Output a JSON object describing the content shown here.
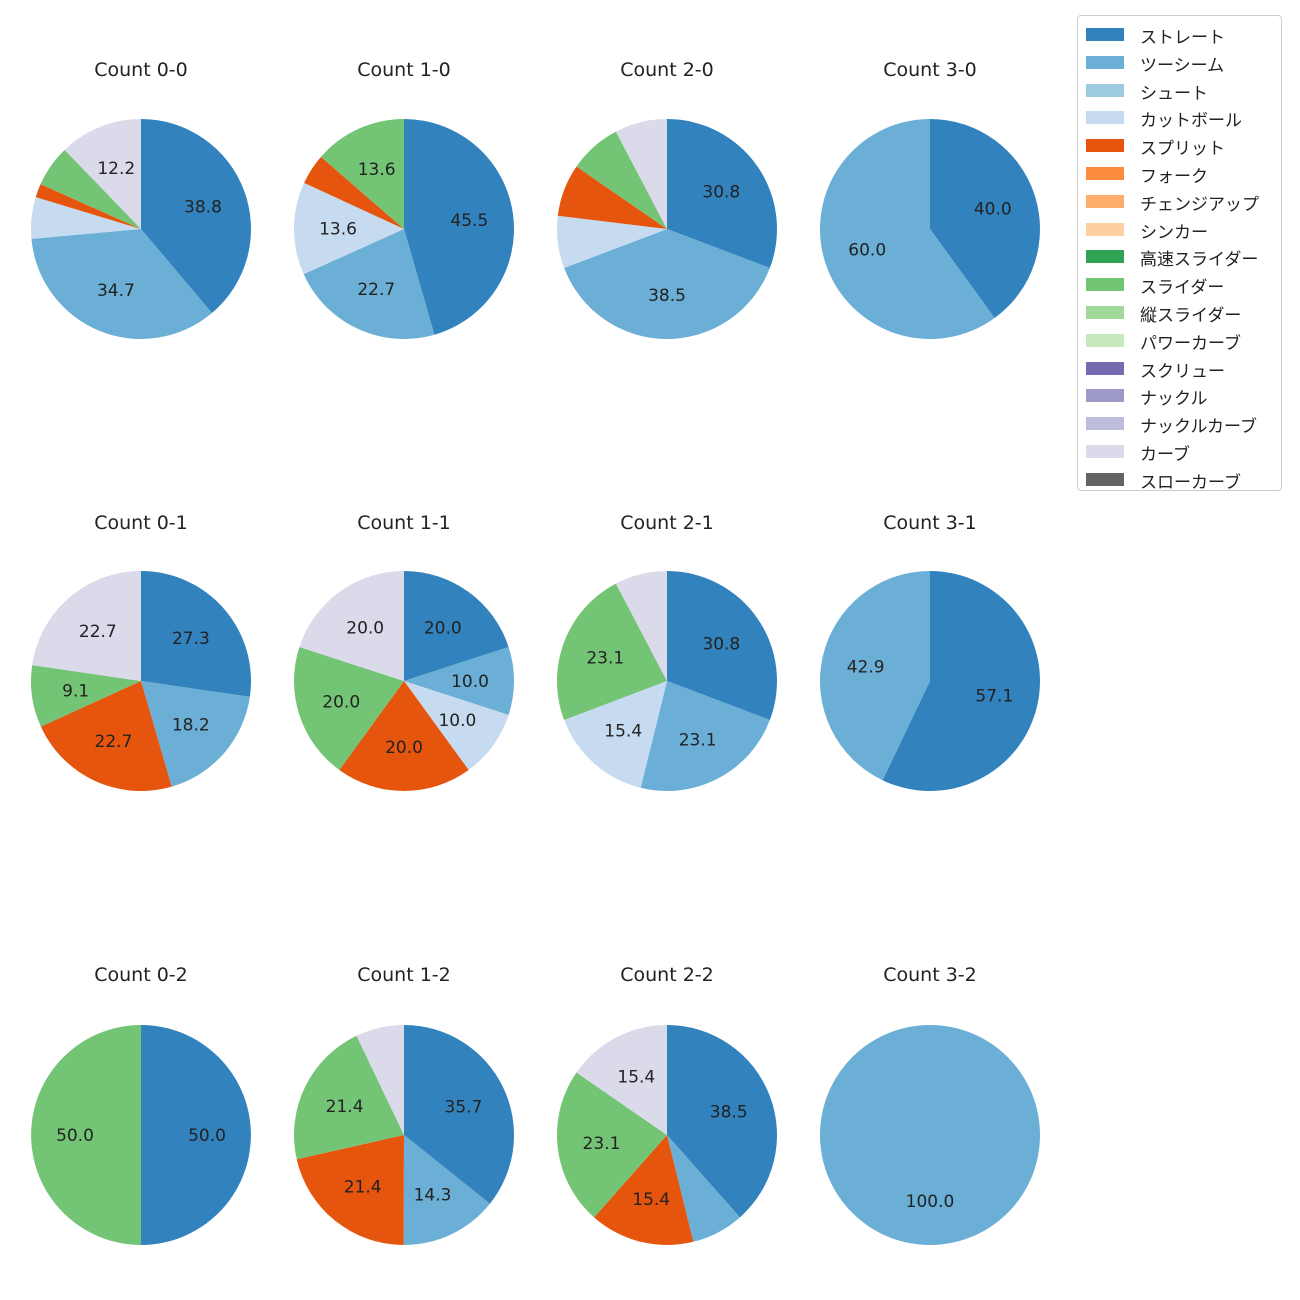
{
  "pitch_types": [
    {
      "name": "ストレート",
      "color": "#3182bd"
    },
    {
      "name": "ツーシーム",
      "color": "#6baed6"
    },
    {
      "name": "シュート",
      "color": "#9ecae1"
    },
    {
      "name": "カットボール",
      "color": "#c6dbef"
    },
    {
      "name": "スプリット",
      "color": "#e6550d"
    },
    {
      "name": "フォーク",
      "color": "#fd8d3c"
    },
    {
      "name": "チェンジアップ",
      "color": "#fdae6b"
    },
    {
      "name": "シンカー",
      "color": "#fdd0a2"
    },
    {
      "name": "高速スライダー",
      "color": "#31a354"
    },
    {
      "name": "スライダー",
      "color": "#74c476"
    },
    {
      "name": "縦スライダー",
      "color": "#a1d99b"
    },
    {
      "name": "パワーカーブ",
      "color": "#c7e9c0"
    },
    {
      "name": "スクリュー",
      "color": "#756bb1"
    },
    {
      "name": "ナックル",
      "color": "#9e9ac8"
    },
    {
      "name": "ナックルカーブ",
      "color": "#bcbddc"
    },
    {
      "name": "カーブ",
      "color": "#dadaeb"
    },
    {
      "name": "スローカーブ",
      "color": "#636363"
    }
  ],
  "chart_data": [
    {
      "type": "pie",
      "title": "Count 0-0",
      "slices": [
        {
          "pitch": "ストレート",
          "value": 38.8,
          "label": "38.8"
        },
        {
          "pitch": "ツーシーム",
          "value": 34.7,
          "label": "34.7"
        },
        {
          "pitch": "カットボール",
          "value": 6.1,
          "label": ""
        },
        {
          "pitch": "スプリット",
          "value": 2.0,
          "label": ""
        },
        {
          "pitch": "スライダー",
          "value": 6.1,
          "label": ""
        },
        {
          "pitch": "カーブ",
          "value": 12.2,
          "label": "12.2"
        }
      ]
    },
    {
      "type": "pie",
      "title": "Count 1-0",
      "slices": [
        {
          "pitch": "ストレート",
          "value": 45.5,
          "label": "45.5"
        },
        {
          "pitch": "ツーシーム",
          "value": 22.7,
          "label": "22.7"
        },
        {
          "pitch": "カットボール",
          "value": 13.6,
          "label": "13.6"
        },
        {
          "pitch": "スプリット",
          "value": 4.5,
          "label": ""
        },
        {
          "pitch": "スライダー",
          "value": 13.6,
          "label": "13.6"
        }
      ]
    },
    {
      "type": "pie",
      "title": "Count 2-0",
      "slices": [
        {
          "pitch": "ストレート",
          "value": 30.8,
          "label": "30.8"
        },
        {
          "pitch": "ツーシーム",
          "value": 38.5,
          "label": "38.5"
        },
        {
          "pitch": "カットボール",
          "value": 7.7,
          "label": ""
        },
        {
          "pitch": "スプリット",
          "value": 7.7,
          "label": ""
        },
        {
          "pitch": "スライダー",
          "value": 7.7,
          "label": ""
        },
        {
          "pitch": "カーブ",
          "value": 7.7,
          "label": ""
        }
      ]
    },
    {
      "type": "pie",
      "title": "Count 3-0",
      "slices": [
        {
          "pitch": "ストレート",
          "value": 40.0,
          "label": "40.0"
        },
        {
          "pitch": "ツーシーム",
          "value": 60.0,
          "label": "60.0"
        }
      ]
    },
    {
      "type": "pie",
      "title": "Count 0-1",
      "slices": [
        {
          "pitch": "ストレート",
          "value": 27.3,
          "label": "27.3"
        },
        {
          "pitch": "ツーシーム",
          "value": 18.2,
          "label": "18.2"
        },
        {
          "pitch": "スプリット",
          "value": 22.7,
          "label": "22.7"
        },
        {
          "pitch": "スライダー",
          "value": 9.1,
          "label": "9.1"
        },
        {
          "pitch": "カーブ",
          "value": 22.7,
          "label": "22.7"
        }
      ]
    },
    {
      "type": "pie",
      "title": "Count 1-1",
      "slices": [
        {
          "pitch": "ストレート",
          "value": 20.0,
          "label": "20.0"
        },
        {
          "pitch": "ツーシーム",
          "value": 10.0,
          "label": "10.0"
        },
        {
          "pitch": "カットボール",
          "value": 10.0,
          "label": "10.0"
        },
        {
          "pitch": "スプリット",
          "value": 20.0,
          "label": "20.0"
        },
        {
          "pitch": "スライダー",
          "value": 20.0,
          "label": "20.0"
        },
        {
          "pitch": "カーブ",
          "value": 20.0,
          "label": "20.0"
        }
      ]
    },
    {
      "type": "pie",
      "title": "Count 2-1",
      "slices": [
        {
          "pitch": "ストレート",
          "value": 30.8,
          "label": "30.8"
        },
        {
          "pitch": "ツーシーム",
          "value": 23.1,
          "label": "23.1"
        },
        {
          "pitch": "カットボール",
          "value": 15.4,
          "label": "15.4"
        },
        {
          "pitch": "スライダー",
          "value": 23.1,
          "label": "23.1"
        },
        {
          "pitch": "カーブ",
          "value": 7.7,
          "label": ""
        }
      ]
    },
    {
      "type": "pie",
      "title": "Count 3-1",
      "slices": [
        {
          "pitch": "ストレート",
          "value": 57.1,
          "label": "57.1"
        },
        {
          "pitch": "ツーシーム",
          "value": 42.9,
          "label": "42.9"
        }
      ]
    },
    {
      "type": "pie",
      "title": "Count 0-2",
      "slices": [
        {
          "pitch": "ストレート",
          "value": 50.0,
          "label": "50.0"
        },
        {
          "pitch": "スライダー",
          "value": 50.0,
          "label": "50.0"
        }
      ]
    },
    {
      "type": "pie",
      "title": "Count 1-2",
      "slices": [
        {
          "pitch": "ストレート",
          "value": 35.7,
          "label": "35.7"
        },
        {
          "pitch": "ツーシーム",
          "value": 14.3,
          "label": "14.3"
        },
        {
          "pitch": "スプリット",
          "value": 21.4,
          "label": "21.4"
        },
        {
          "pitch": "スライダー",
          "value": 21.4,
          "label": "21.4"
        },
        {
          "pitch": "カーブ",
          "value": 7.1,
          "label": ""
        }
      ]
    },
    {
      "type": "pie",
      "title": "Count 2-2",
      "slices": [
        {
          "pitch": "ストレート",
          "value": 38.5,
          "label": "38.5"
        },
        {
          "pitch": "ツーシーム",
          "value": 7.7,
          "label": ""
        },
        {
          "pitch": "スプリット",
          "value": 15.4,
          "label": "15.4"
        },
        {
          "pitch": "スライダー",
          "value": 23.1,
          "label": "23.1"
        },
        {
          "pitch": "カーブ",
          "value": 15.4,
          "label": "15.4"
        }
      ]
    },
    {
      "type": "pie",
      "title": "Count 3-2",
      "slices": [
        {
          "pitch": "ツーシーム",
          "value": 100.0,
          "label": "100.0"
        }
      ]
    }
  ]
}
